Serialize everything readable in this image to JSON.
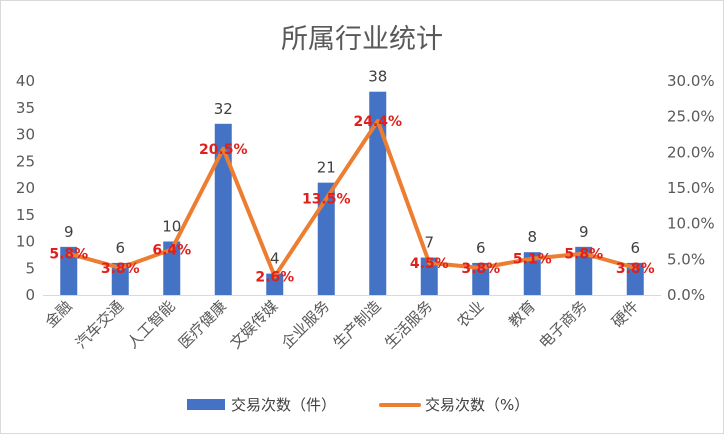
{
  "chart_data": {
    "type": "bar",
    "title": "所属行业统计",
    "categories": [
      "金融",
      "汽车交通",
      "人工智能",
      "医疗健康",
      "文娱传媒",
      "企业服务",
      "生产制造",
      "生活服务",
      "农业",
      "教育",
      "电子商务",
      "硬件"
    ],
    "series": [
      {
        "name": "交易次数（件）",
        "type": "bar",
        "axis": "left",
        "color": "#4472c4",
        "values": [
          9,
          6,
          10,
          32,
          4,
          21,
          38,
          7,
          6,
          8,
          9,
          6
        ],
        "labels": [
          "9",
          "6",
          "10",
          "32",
          "4",
          "21",
          "38",
          "7",
          "6",
          "8",
          "9",
          "6"
        ]
      },
      {
        "name": "交易次数（%）",
        "type": "line",
        "axis": "right",
        "color": "#ed7d31",
        "values": [
          5.8,
          3.8,
          6.4,
          20.5,
          2.6,
          13.5,
          24.4,
          4.5,
          3.8,
          5.1,
          5.8,
          3.8
        ],
        "labels": [
          "5.8%",
          "3.8%",
          "6.4%",
          "20.5%",
          "2.6%",
          "13.5%",
          "24.4%",
          "4.5%",
          "3.8%",
          "5.1%",
          "5.8%",
          "3.8%"
        ],
        "label_color": "#e0201b"
      }
    ],
    "y_left": {
      "range": [
        0,
        40
      ],
      "ticks": [
        0,
        5,
        10,
        15,
        20,
        25,
        30,
        35,
        40
      ],
      "tick_labels": [
        "0",
        "5",
        "10",
        "15",
        "20",
        "25",
        "30",
        "35",
        "40"
      ]
    },
    "y_right": {
      "range": [
        0,
        30
      ],
      "ticks": [
        0,
        5,
        10,
        15,
        20,
        25,
        30
      ],
      "tick_labels": [
        "0.0%",
        "5.0%",
        "10.0%",
        "15.0%",
        "20.0%",
        "25.0%",
        "30.0%"
      ]
    },
    "grid": false,
    "legend_position": "bottom"
  }
}
